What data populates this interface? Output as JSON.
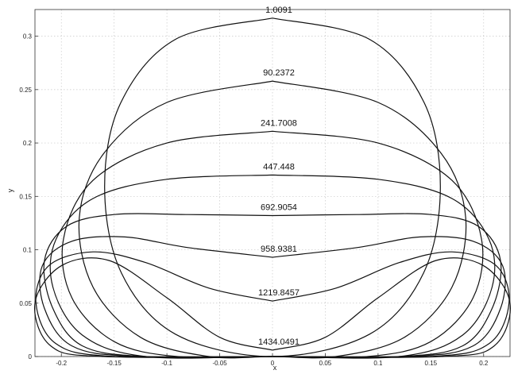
{
  "chart_data": {
    "type": "line",
    "title": "",
    "xlabel": "x",
    "ylabel": "y",
    "xlim": [
      -0.225,
      0.225
    ],
    "ylim": [
      0,
      0.325
    ],
    "grid": true,
    "legend": "none",
    "x_ticks": [
      "-0.2",
      "-0.15",
      "-0.1",
      "-0.05",
      "0",
      "0.05",
      "0.1",
      "0.15",
      "0.2"
    ],
    "y_ticks": [
      "0",
      "0.05",
      "0.1",
      "0.15",
      "0.2",
      "0.25",
      "0.3"
    ],
    "series": [
      {
        "label": "1.0091",
        "points": [
          [
            0,
            0.317
          ],
          [
            0.092,
            0.297
          ],
          [
            0.144,
            0.237
          ],
          [
            0.159,
            0.158
          ],
          [
            0.143,
            0.078
          ],
          [
            0.092,
            0.021
          ],
          [
            0,
            0
          ],
          [
            -0.092,
            0.021
          ],
          [
            -0.143,
            0.078
          ],
          [
            -0.159,
            0.158
          ],
          [
            -0.144,
            0.237
          ],
          [
            -0.092,
            0.297
          ],
          [
            0,
            0.317
          ]
        ]
      },
      {
        "label": "90.2372",
        "points": [
          [
            0,
            0.258
          ],
          [
            0.1,
            0.238
          ],
          [
            0.16,
            0.19
          ],
          [
            0.183,
            0.13
          ],
          [
            0.17,
            0.065
          ],
          [
            0.125,
            0.018
          ],
          [
            0.06,
            0
          ],
          [
            0,
            0
          ],
          [
            -0.06,
            0
          ],
          [
            -0.125,
            0.018
          ],
          [
            -0.17,
            0.065
          ],
          [
            -0.183,
            0.13
          ],
          [
            -0.16,
            0.19
          ],
          [
            -0.1,
            0.238
          ],
          [
            0,
            0.258
          ]
        ]
      },
      {
        "label": "241.7008",
        "points": [
          [
            0,
            0.211
          ],
          [
            0.1,
            0.2
          ],
          [
            0.17,
            0.165
          ],
          [
            0.198,
            0.11
          ],
          [
            0.19,
            0.055
          ],
          [
            0.15,
            0.014
          ],
          [
            0.09,
            0
          ],
          [
            0,
            0
          ],
          [
            -0.09,
            0
          ],
          [
            -0.15,
            0.014
          ],
          [
            -0.19,
            0.055
          ],
          [
            -0.198,
            0.11
          ],
          [
            -0.17,
            0.165
          ],
          [
            -0.1,
            0.2
          ],
          [
            0,
            0.211
          ]
        ]
      },
      {
        "label": "447.448",
        "points": [
          [
            0,
            0.17
          ],
          [
            0.1,
            0.166
          ],
          [
            0.17,
            0.148
          ],
          [
            0.205,
            0.11
          ],
          [
            0.208,
            0.065
          ],
          [
            0.18,
            0.02
          ],
          [
            0.12,
            0
          ],
          [
            0,
            0
          ],
          [
            -0.12,
            0
          ],
          [
            -0.18,
            0.02
          ],
          [
            -0.208,
            0.065
          ],
          [
            -0.205,
            0.11
          ],
          [
            -0.17,
            0.148
          ],
          [
            -0.1,
            0.166
          ],
          [
            0,
            0.17
          ]
        ]
      },
      {
        "label": "692.9054",
        "points": [
          [
            0,
            0.132
          ],
          [
            0.08,
            0.133
          ],
          [
            0.15,
            0.133
          ],
          [
            0.195,
            0.122
          ],
          [
            0.216,
            0.09
          ],
          [
            0.208,
            0.045
          ],
          [
            0.18,
            0.01
          ],
          [
            0.12,
            0
          ],
          [
            0,
            0
          ],
          [
            -0.12,
            0
          ],
          [
            -0.18,
            0.01
          ],
          [
            -0.208,
            0.045
          ],
          [
            -0.216,
            0.09
          ],
          [
            -0.195,
            0.122
          ],
          [
            -0.15,
            0.133
          ],
          [
            -0.08,
            0.133
          ],
          [
            0,
            0.132
          ]
        ]
      },
      {
        "label": "958.9381",
        "points": [
          [
            0,
            0.093
          ],
          [
            0.08,
            0.102
          ],
          [
            0.14,
            0.112
          ],
          [
            0.19,
            0.108
          ],
          [
            0.218,
            0.085
          ],
          [
            0.216,
            0.045
          ],
          [
            0.19,
            0.01
          ],
          [
            0.13,
            0
          ],
          [
            0,
            0
          ],
          [
            -0.13,
            0
          ],
          [
            -0.19,
            0.01
          ],
          [
            -0.216,
            0.045
          ],
          [
            -0.218,
            0.085
          ],
          [
            -0.19,
            0.108
          ],
          [
            -0.14,
            0.112
          ],
          [
            -0.08,
            0.102
          ],
          [
            0,
            0.093
          ]
        ]
      },
      {
        "label": "1219.8457",
        "points": [
          [
            0,
            0.052
          ],
          [
            0.06,
            0.064
          ],
          [
            0.12,
            0.088
          ],
          [
            0.17,
            0.098
          ],
          [
            0.212,
            0.085
          ],
          [
            0.224,
            0.05
          ],
          [
            0.205,
            0.012
          ],
          [
            0.15,
            0
          ],
          [
            0,
            0
          ],
          [
            -0.15,
            0
          ],
          [
            -0.205,
            0.012
          ],
          [
            -0.224,
            0.05
          ],
          [
            -0.212,
            0.085
          ],
          [
            -0.17,
            0.098
          ],
          [
            -0.12,
            0.088
          ],
          [
            -0.06,
            0.064
          ],
          [
            0,
            0.052
          ]
        ]
      },
      {
        "label": "1434.0491",
        "points": [
          [
            0,
            0.006
          ],
          [
            0.05,
            0.018
          ],
          [
            0.1,
            0.055
          ],
          [
            0.155,
            0.09
          ],
          [
            0.2,
            0.085
          ],
          [
            0.225,
            0.05
          ],
          [
            0.21,
            0.01
          ],
          [
            0.16,
            0
          ],
          [
            0,
            0
          ],
          [
            -0.16,
            0
          ],
          [
            -0.21,
            0.01
          ],
          [
            -0.225,
            0.05
          ],
          [
            -0.2,
            0.085
          ],
          [
            -0.155,
            0.09
          ],
          [
            -0.1,
            0.055
          ],
          [
            -0.05,
            0.018
          ],
          [
            0,
            0.006
          ]
        ]
      }
    ]
  }
}
